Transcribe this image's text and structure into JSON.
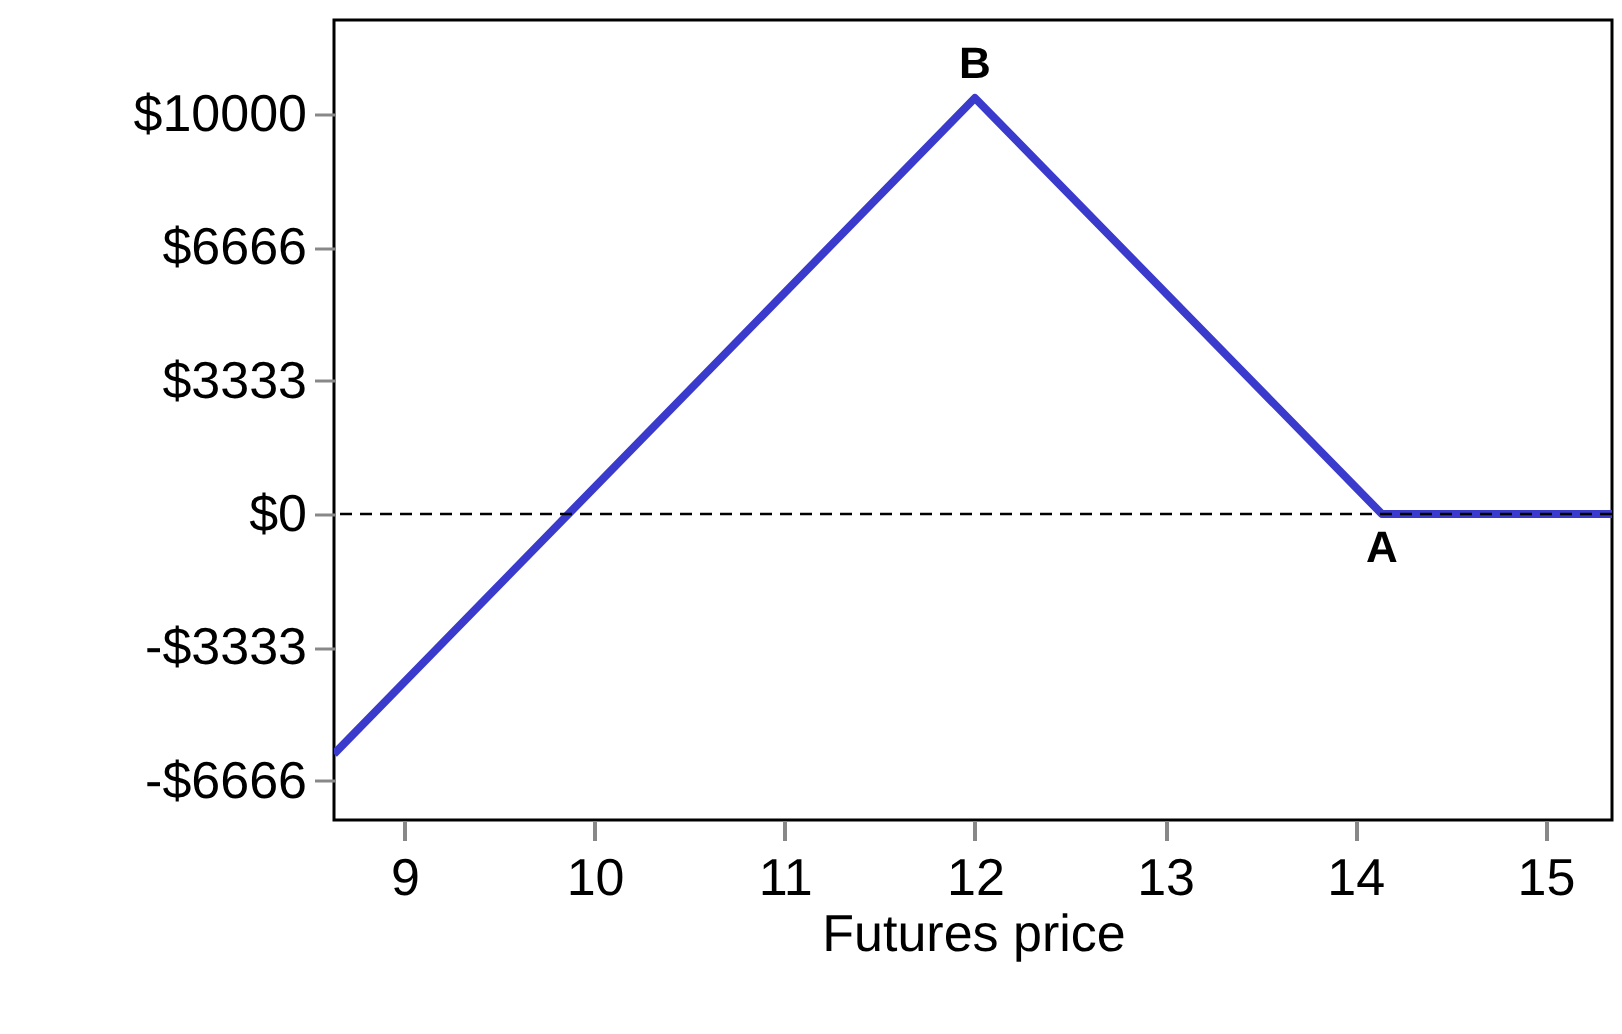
{
  "chart_data": {
    "type": "line",
    "xlabel": "Futures price",
    "series": [
      {
        "color": "#3a3acc",
        "x": [
          8.63,
          12,
          14.14,
          15.35
        ],
        "values": [
          -6000,
          10400,
          0,
          0
        ]
      }
    ],
    "xlim": [
      8.63,
      15.35
    ],
    "xticks": [
      9,
      10,
      11,
      12,
      13,
      14,
      15
    ],
    "ylim": [
      -7650,
      12350
    ],
    "yticks": [
      {
        "value": -6666,
        "label": "-$6666"
      },
      {
        "value": -3333,
        "label": "-$3333"
      },
      {
        "value": 0,
        "label": "$0"
      },
      {
        "value": 3333,
        "label": "$3333"
      },
      {
        "value": 6666,
        "label": "$6666"
      },
      {
        "value": 10000,
        "label": "$10000"
      }
    ],
    "ref_lines": [
      {
        "axis": "y",
        "value": 0,
        "line_style": "dashed",
        "color": "#000000"
      }
    ],
    "annotations": [
      {
        "text": "B",
        "x": 12,
        "y": 10400
      },
      {
        "text": "A",
        "x": 14.14,
        "y": 0
      }
    ],
    "grid": false,
    "line_style": "solid"
  }
}
